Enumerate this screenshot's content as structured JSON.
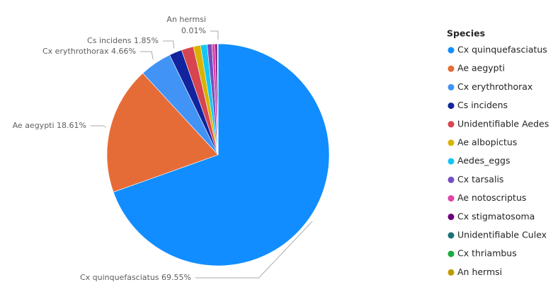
{
  "chart_data": {
    "type": "pie",
    "legend_title": "Species",
    "categories": [
      "Cx quinquefasciatus",
      "Ae aegypti",
      "Cx erythrothorax",
      "Cs incidens",
      "Unidentifiable Aedes",
      "Ae albopictus",
      "Aedes_eggs",
      "Cx tarsalis",
      "Ae notoscriptus",
      "Cx stigmatosoma",
      "Unidentifiable Culex",
      "Cx thriambus",
      "An hermsi"
    ],
    "values": [
      69.55,
      18.61,
      4.66,
      1.85,
      1.75,
      1.05,
      0.95,
      0.7,
      0.45,
      0.3,
      0.08,
      0.04,
      0.01
    ],
    "value_labels": [
      "69.55%",
      "18.61%",
      "4.66%",
      "1.85%",
      null,
      null,
      null,
      null,
      null,
      null,
      null,
      null,
      "0.01%"
    ],
    "colors": [
      "#118DFF",
      "#E66C37",
      "#4193F5",
      "#12239E",
      "#D64550",
      "#D9B300",
      "#15C6F4",
      "#744EC2",
      "#E044A7",
      "#6B007B",
      "#197278",
      "#1AAB40",
      "#BF9B00"
    ],
    "legend_position": "right"
  }
}
